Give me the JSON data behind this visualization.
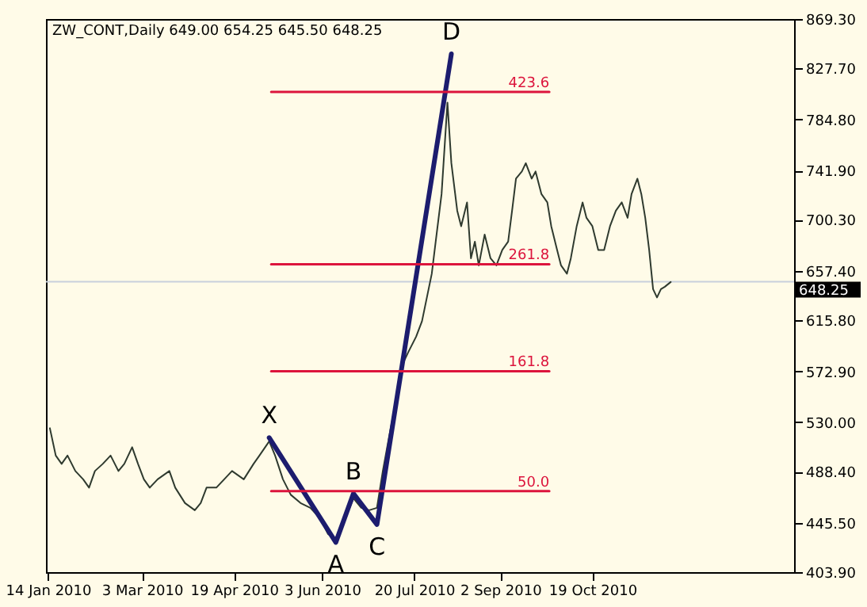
{
  "chart_data": {
    "type": "line",
    "title": "ZW_CONT,Daily  649.00 654.25 645.50 648.25",
    "xlim": [
      "2010-01-13",
      "2011-01-30"
    ],
    "xticks": [
      {
        "value": "2010-01-14",
        "label": "14 Jan 2010"
      },
      {
        "value": "2010-03-03",
        "label": "3 Mar 2010"
      },
      {
        "value": "2010-04-19",
        "label": "19 Apr 2010"
      },
      {
        "value": "2010-06-03",
        "label": "3 Jun 2010"
      },
      {
        "value": "2010-07-20",
        "label": "20 Jul 2010"
      },
      {
        "value": "2010-09-02",
        "label": "2 Sep 2010"
      },
      {
        "value": "2010-10-19",
        "label": "19 Oct 2010"
      }
    ],
    "ylim": [
      403.9,
      869.3
    ],
    "yticks": [
      {
        "value": 403.9,
        "label": "403.90"
      },
      {
        "value": 445.5,
        "label": "445.50"
      },
      {
        "value": 488.4,
        "label": "488.40"
      },
      {
        "value": 530,
        "label": "530.00"
      },
      {
        "value": 572.9,
        "label": "572.90"
      },
      {
        "value": 615.8,
        "label": "615.80"
      },
      {
        "value": 657.4,
        "label": "657.40"
      },
      {
        "value": 700.3,
        "label": "700.30"
      },
      {
        "value": 741.9,
        "label": "741.90"
      },
      {
        "value": 784.8,
        "label": "784.80"
      },
      {
        "value": 827.7,
        "label": "827.70"
      },
      {
        "value": 869.3,
        "label": "869.30"
      }
    ],
    "grid": false,
    "marker": "none",
    "series": [
      {
        "color": "#2f3a2f",
        "x": [
          "2010-01-15",
          "2010-01-18",
          "2010-01-21",
          "2010-01-24",
          "2010-01-28",
          "2010-02-01",
          "2010-02-04",
          "2010-02-07",
          "2010-02-11",
          "2010-02-15",
          "2010-02-19",
          "2010-02-22",
          "2010-02-26",
          "2010-03-01",
          "2010-03-04",
          "2010-03-07",
          "2010-03-11",
          "2010-03-17",
          "2010-03-20",
          "2010-03-25",
          "2010-03-30",
          "2010-04-02",
          "2010-04-05",
          "2010-04-10",
          "2010-04-14",
          "2010-04-18",
          "2010-04-24",
          "2010-04-29",
          "2010-05-02",
          "2010-05-07",
          "2010-05-10",
          "2010-05-14",
          "2010-05-18",
          "2010-05-23",
          "2010-05-28",
          "2010-06-02",
          "2010-06-06",
          "2010-06-10",
          "2010-06-13",
          "2010-06-17",
          "2010-06-19",
          "2010-06-23",
          "2010-06-27",
          "2010-07-01",
          "2010-07-04",
          "2010-07-07",
          "2010-07-10",
          "2010-07-13",
          "2010-07-17",
          "2010-07-21",
          "2010-07-24",
          "2010-07-29",
          "2010-07-31",
          "2010-08-03",
          "2010-08-06",
          "2010-08-08",
          "2010-08-11",
          "2010-08-13",
          "2010-08-16",
          "2010-08-18",
          "2010-08-20",
          "2010-08-22",
          "2010-08-25",
          "2010-08-28",
          "2010-08-31",
          "2010-09-03",
          "2010-09-06",
          "2010-09-08",
          "2010-09-10",
          "2010-09-13",
          "2010-09-15",
          "2010-09-18",
          "2010-09-20",
          "2010-09-23",
          "2010-09-26",
          "2010-09-28",
          "2010-10-01",
          "2010-10-03",
          "2010-10-06",
          "2010-10-08",
          "2010-10-11",
          "2010-10-14",
          "2010-10-16",
          "2010-10-19",
          "2010-10-22",
          "2010-10-25",
          "2010-10-28",
          "2010-10-31",
          "2010-11-03",
          "2010-11-06",
          "2010-11-08",
          "2010-11-11",
          "2010-11-13",
          "2010-11-15",
          "2010-11-17",
          "2010-11-19",
          "2010-11-21",
          "2010-11-23",
          "2010-11-25",
          "2010-11-28"
        ],
        "values": [
          525,
          502,
          495,
          502,
          489,
          482,
          475,
          489,
          495,
          502,
          489,
          495,
          509,
          495,
          482,
          475,
          482,
          489,
          475,
          462,
          456,
          462,
          475,
          475,
          482,
          489,
          482,
          495,
          502,
          514,
          502,
          482,
          469,
          462,
          458,
          449,
          436,
          432,
          445,
          458,
          466,
          458,
          456,
          458,
          489,
          516,
          542,
          575,
          589,
          602,
          615,
          655,
          682,
          722,
          799,
          748,
          708,
          695,
          715,
          668,
          682,
          662,
          688,
          668,
          662,
          675,
          682,
          708,
          735,
          741,
          748,
          735,
          741,
          722,
          715,
          695,
          675,
          662,
          655,
          668,
          695,
          715,
          702,
          695,
          675,
          675,
          695,
          708,
          715,
          702,
          722,
          735,
          722,
          702,
          675,
          642,
          635,
          642,
          644,
          648
        ]
      },
      {
        "color": "#1c1c6e",
        "x": [
          "2010-05-07",
          "2010-06-10",
          "2010-06-19",
          "2010-07-01",
          "2010-08-08"
        ],
        "values": [
          517,
          429,
          470,
          444,
          840
        ]
      },
      {
        "name": "423.6",
        "color": "#dc143c",
        "x": [
          "2010-05-08",
          "2010-09-27"
        ],
        "values": [
          808,
          808
        ]
      },
      {
        "name": "261.8",
        "color": "#dc143c",
        "x": [
          "2010-05-08",
          "2010-09-27"
        ],
        "values": [
          663,
          663
        ]
      },
      {
        "name": "161.8",
        "color": "#dc143c",
        "x": [
          "2010-05-08",
          "2010-09-27"
        ],
        "values": [
          573,
          573
        ]
      },
      {
        "name": "50.0",
        "color": "#dc143c",
        "x": [
          "2010-05-08",
          "2010-09-27"
        ],
        "values": [
          472,
          472
        ]
      }
    ],
    "ref_lines": [
      {
        "axis": "y",
        "value": 648.25,
        "label": "648.25",
        "color": "#c8d0dc"
      }
    ],
    "annotations": [
      {
        "text": "X",
        "x": "2010-05-07",
        "y": 517
      },
      {
        "text": "A",
        "x": "2010-06-10",
        "y": 429
      },
      {
        "text": "B",
        "x": "2010-06-19",
        "y": 470
      },
      {
        "text": "C",
        "x": "2010-07-01",
        "y": 444
      },
      {
        "text": "D",
        "x": "2010-08-08",
        "y": 840
      }
    ]
  }
}
